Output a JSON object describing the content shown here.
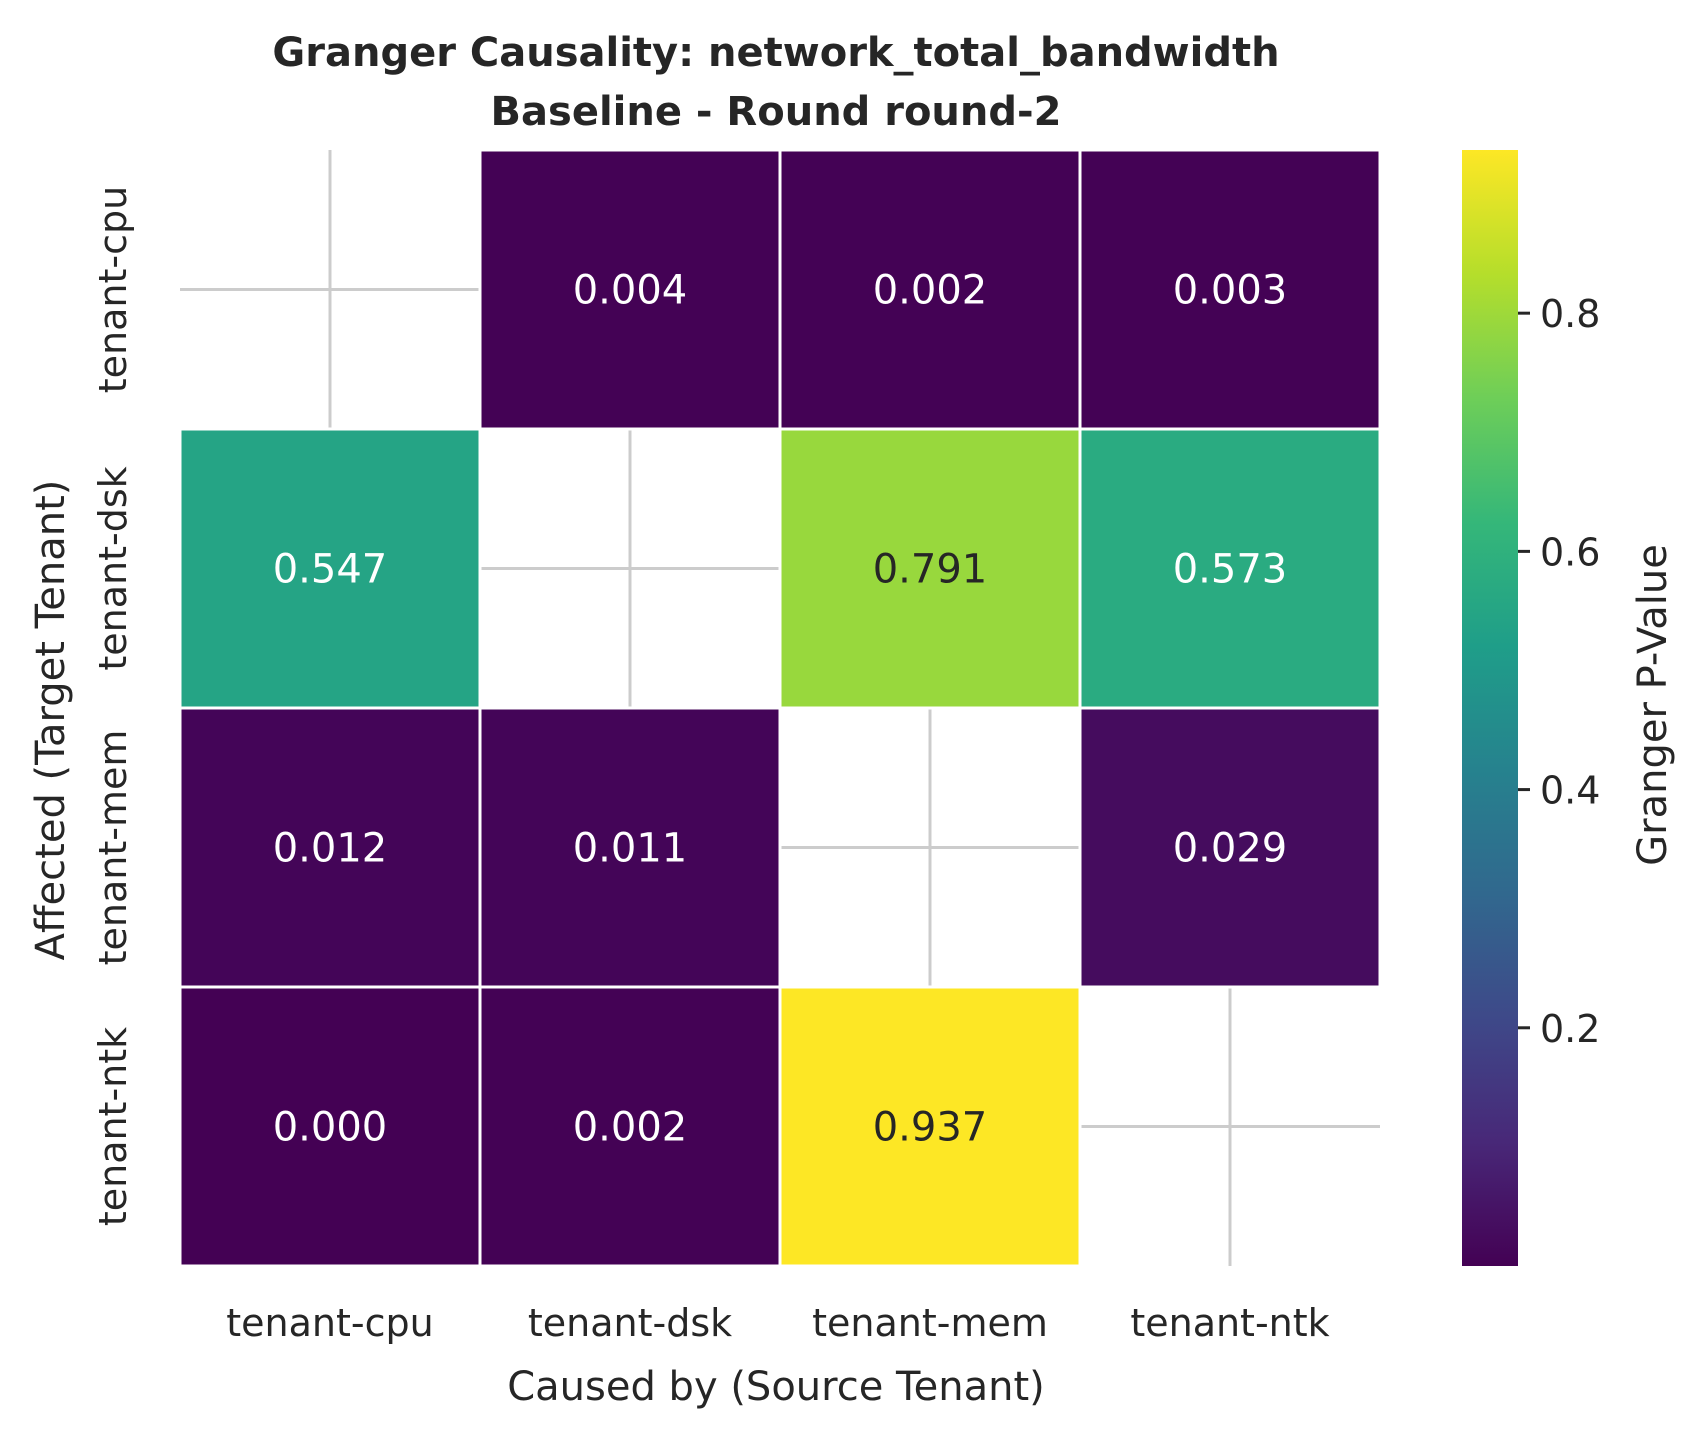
{
  "chart_data": {
    "type": "heatmap",
    "title": "Granger Causality: network_total_bandwidth",
    "subtitle": "Baseline - Round round-2",
    "xlabel": "Caused by (Source Tenant)",
    "ylabel": "Affected (Target Tenant)",
    "x_categories": [
      "tenant-cpu",
      "tenant-dsk",
      "tenant-mem",
      "tenant-ntk"
    ],
    "y_categories": [
      "tenant-cpu",
      "tenant-dsk",
      "tenant-mem",
      "tenant-ntk"
    ],
    "values": [
      [
        null,
        0.004,
        0.002,
        0.003
      ],
      [
        0.547,
        null,
        0.791,
        0.573
      ],
      [
        0.012,
        0.011,
        null,
        0.029
      ],
      [
        0.0,
        0.002,
        0.937,
        null
      ]
    ],
    "value_labels": [
      [
        "",
        "0.004",
        "0.002",
        "0.003"
      ],
      [
        "0.547",
        "",
        "0.791",
        "0.573"
      ],
      [
        "0.012",
        "0.011",
        "",
        "0.029"
      ],
      [
        "0.000",
        "0.002",
        "0.937",
        ""
      ]
    ],
    "colormap": "viridis",
    "colorbar": {
      "label": "Granger P-Value",
      "min": 0.0,
      "max": 0.937,
      "ticks": [
        0.2,
        0.4,
        0.6,
        0.8
      ],
      "tick_labels": [
        "0.2",
        "0.4",
        "0.6",
        "0.8"
      ]
    },
    "grid": true
  }
}
